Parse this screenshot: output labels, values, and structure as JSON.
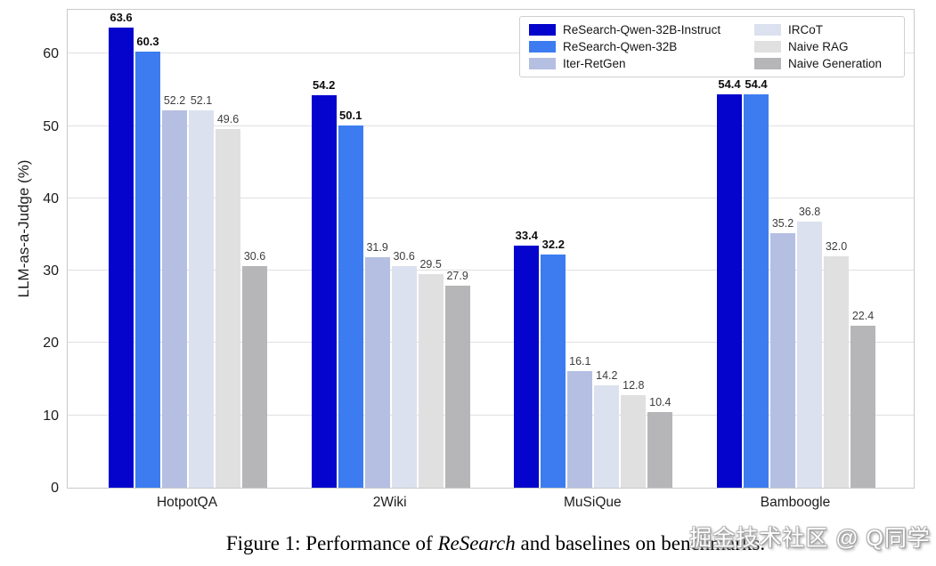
{
  "chart_data": {
    "type": "bar",
    "title": "",
    "xlabel": "",
    "ylabel": "LLM-as-a-Judge (%)",
    "ylim": [
      0,
      66.3
    ],
    "yticks": [
      0,
      10,
      20,
      30,
      40,
      50,
      60
    ],
    "grid": true,
    "legend_position": "upper right",
    "legend_columns": 2,
    "categories": [
      "HotpotQA",
      "2Wiki",
      "MuSiQue",
      "Bamboogle"
    ],
    "series": [
      {
        "name": "ReSearch-Qwen-32B-Instruct",
        "color": "#0504CC",
        "bold_labels": true,
        "values": [
          63.6,
          54.2,
          33.4,
          54.4
        ]
      },
      {
        "name": "ReSearch-Qwen-32B",
        "color": "#3C7CF0",
        "bold_labels": true,
        "values": [
          60.3,
          50.1,
          32.2,
          54.4
        ]
      },
      {
        "name": "Iter-RetGen",
        "color": "#B5BFE2",
        "bold_labels": false,
        "values": [
          52.2,
          31.9,
          16.1,
          35.2
        ]
      },
      {
        "name": "IRCoT",
        "color": "#DBE1EF",
        "bold_labels": false,
        "values": [
          52.1,
          30.6,
          14.2,
          36.8
        ]
      },
      {
        "name": "Naive RAG",
        "color": "#E0E0E1",
        "bold_labels": false,
        "values": [
          49.6,
          29.5,
          12.8,
          32.0
        ]
      },
      {
        "name": "Naive Generation",
        "color": "#B6B6B8",
        "bold_labels": false,
        "values": [
          30.6,
          27.9,
          10.4,
          22.4
        ]
      }
    ]
  },
  "caption": {
    "prefix": "Figure 1: Performance of ",
    "italic": "ReSearch",
    "suffix": " and baselines on benchmarks."
  },
  "watermark": "掘金技术社区 @ Q同学"
}
